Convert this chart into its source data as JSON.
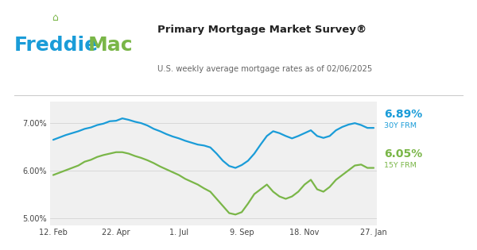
{
  "title": "Primary Mortgage Market Survey®",
  "subtitle": "U.S. weekly average mortgage rates as of 02/06/2025",
  "freddie_blue": "#1a9cd8",
  "freddie_green": "#7ab648",
  "freddie_text_blue": "#1a9cd8",
  "rate_30y_label": "6.89%",
  "rate_15y_label": "6.05%",
  "label_30y": "30Y FRM",
  "label_15y": "15Y FRM",
  "plot_bg": "#f0f0f0",
  "ylim": [
    4.85,
    7.45
  ],
  "yticks": [
    5.0,
    6.0,
    7.0
  ],
  "ytick_labels": [
    "5.00%",
    "6.00%",
    "7.00%"
  ],
  "x_tick_labels": [
    "12. Feb",
    "22. Apr",
    "1. Jul",
    "9. Sep",
    "18. Nov",
    "27. Jan"
  ],
  "x_tick_positions": [
    0,
    10,
    20,
    30,
    40,
    51
  ],
  "n_points": 52,
  "data_30y": [
    6.64,
    6.69,
    6.74,
    6.78,
    6.82,
    6.87,
    6.9,
    6.95,
    6.98,
    7.03,
    7.04,
    7.09,
    7.06,
    7.02,
    6.99,
    6.94,
    6.87,
    6.82,
    6.76,
    6.71,
    6.67,
    6.62,
    6.58,
    6.54,
    6.52,
    6.48,
    6.35,
    6.2,
    6.09,
    6.05,
    6.11,
    6.2,
    6.35,
    6.54,
    6.72,
    6.82,
    6.78,
    6.72,
    6.67,
    6.72,
    6.78,
    6.84,
    6.72,
    6.68,
    6.72,
    6.84,
    6.91,
    6.96,
    6.99,
    6.95,
    6.89,
    6.89
  ],
  "data_15y": [
    5.9,
    5.95,
    6.0,
    6.05,
    6.1,
    6.18,
    6.22,
    6.28,
    6.32,
    6.35,
    6.38,
    6.38,
    6.35,
    6.3,
    6.26,
    6.21,
    6.15,
    6.08,
    6.02,
    5.96,
    5.9,
    5.82,
    5.76,
    5.7,
    5.62,
    5.55,
    5.4,
    5.25,
    5.1,
    5.07,
    5.12,
    5.3,
    5.5,
    5.6,
    5.7,
    5.55,
    5.45,
    5.4,
    5.45,
    5.55,
    5.7,
    5.8,
    5.6,
    5.55,
    5.65,
    5.8,
    5.9,
    6.0,
    6.1,
    6.12,
    6.05,
    6.05
  ]
}
